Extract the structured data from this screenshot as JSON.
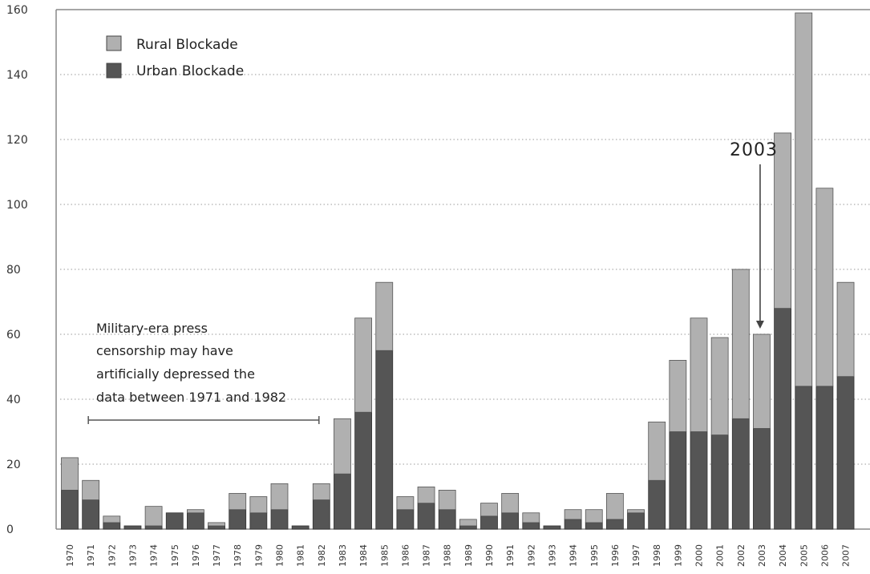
{
  "chart_data": {
    "type": "bar",
    "stacked": true,
    "title": "",
    "xlabel": "",
    "ylabel": "",
    "ylim": [
      0,
      160
    ],
    "yticks": [
      0,
      20,
      40,
      60,
      80,
      100,
      120,
      140,
      160
    ],
    "grid": "horizontal dotted",
    "legend_position": "top-left",
    "categories": [
      "1970",
      "1971",
      "1972",
      "1973",
      "1974",
      "1975",
      "1976",
      "1977",
      "1978",
      "1979",
      "1980",
      "1981",
      "1982",
      "1983",
      "1984",
      "1985",
      "1986",
      "1987",
      "1988",
      "1989",
      "1990",
      "1991",
      "1992",
      "1993",
      "1994",
      "1995",
      "1996",
      "1997",
      "1998",
      "1999",
      "2000",
      "2001",
      "2002",
      "2003",
      "2004",
      "2005",
      "2006",
      "2007"
    ],
    "series": [
      {
        "name": "Urban Blockade",
        "color": "#555555",
        "values": [
          12,
          9,
          2,
          1,
          1,
          5,
          5,
          1,
          6,
          5,
          6,
          1,
          9,
          17,
          36,
          55,
          6,
          8,
          6,
          1,
          4,
          5,
          2,
          1,
          3,
          2,
          3,
          5,
          15,
          30,
          30,
          29,
          34,
          31,
          68,
          44,
          44,
          47
        ]
      },
      {
        "name": "Rural Blockade",
        "color": "#b0b0b0",
        "values": [
          10,
          6,
          2,
          0,
          6,
          0,
          1,
          1,
          5,
          5,
          8,
          0,
          5,
          17,
          29,
          21,
          4,
          5,
          6,
          2,
          4,
          6,
          3,
          0,
          3,
          4,
          8,
          1,
          18,
          22,
          35,
          30,
          46,
          29,
          54,
          115,
          61,
          29
        ]
      }
    ],
    "annotations": {
      "censorship_note": [
        "Military-era press",
        "censorship may have",
        "artificially depressed the",
        "data between 1971 and 1982"
      ],
      "censorship_range": [
        "1971",
        "1982"
      ],
      "arrow_label": "2003",
      "arrow_target": "2003"
    }
  }
}
